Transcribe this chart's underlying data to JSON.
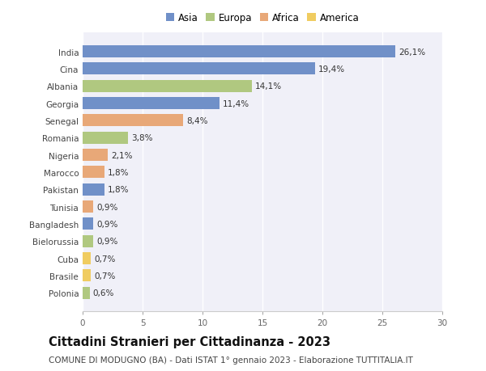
{
  "countries": [
    "India",
    "Cina",
    "Albania",
    "Georgia",
    "Senegal",
    "Romania",
    "Nigeria",
    "Marocco",
    "Pakistan",
    "Tunisia",
    "Bangladesh",
    "Bielorussia",
    "Cuba",
    "Brasile",
    "Polonia"
  ],
  "values": [
    26.1,
    19.4,
    14.1,
    11.4,
    8.4,
    3.8,
    2.1,
    1.8,
    1.8,
    0.9,
    0.9,
    0.9,
    0.7,
    0.7,
    0.6
  ],
  "labels": [
    "26,1%",
    "19,4%",
    "14,1%",
    "11,4%",
    "8,4%",
    "3,8%",
    "2,1%",
    "1,8%",
    "1,8%",
    "0,9%",
    "0,9%",
    "0,9%",
    "0,7%",
    "0,7%",
    "0,6%"
  ],
  "continents": [
    "Asia",
    "Asia",
    "Europa",
    "Asia",
    "Africa",
    "Europa",
    "Africa",
    "Africa",
    "Asia",
    "Africa",
    "Asia",
    "Europa",
    "America",
    "America",
    "Europa"
  ],
  "continent_colors": {
    "Asia": "#7090C8",
    "Europa": "#B0C880",
    "Africa": "#E8A878",
    "America": "#F0CC60"
  },
  "legend_order": [
    "Asia",
    "Europa",
    "Africa",
    "America"
  ],
  "title": "Cittadini Stranieri per Cittadinanza - 2023",
  "subtitle": "COMUNE DI MODUGNO (BA) - Dati ISTAT 1° gennaio 2023 - Elaborazione TUTTITALIA.IT",
  "xlim": [
    0,
    30
  ],
  "xticks": [
    0,
    5,
    10,
    15,
    20,
    25,
    30
  ],
  "background_color": "#ffffff",
  "plot_bg_color": "#f0f0f8",
  "bar_height": 0.7,
  "title_fontsize": 10.5,
  "subtitle_fontsize": 7.5,
  "label_fontsize": 7.5,
  "tick_fontsize": 7.5,
  "legend_fontsize": 8.5
}
